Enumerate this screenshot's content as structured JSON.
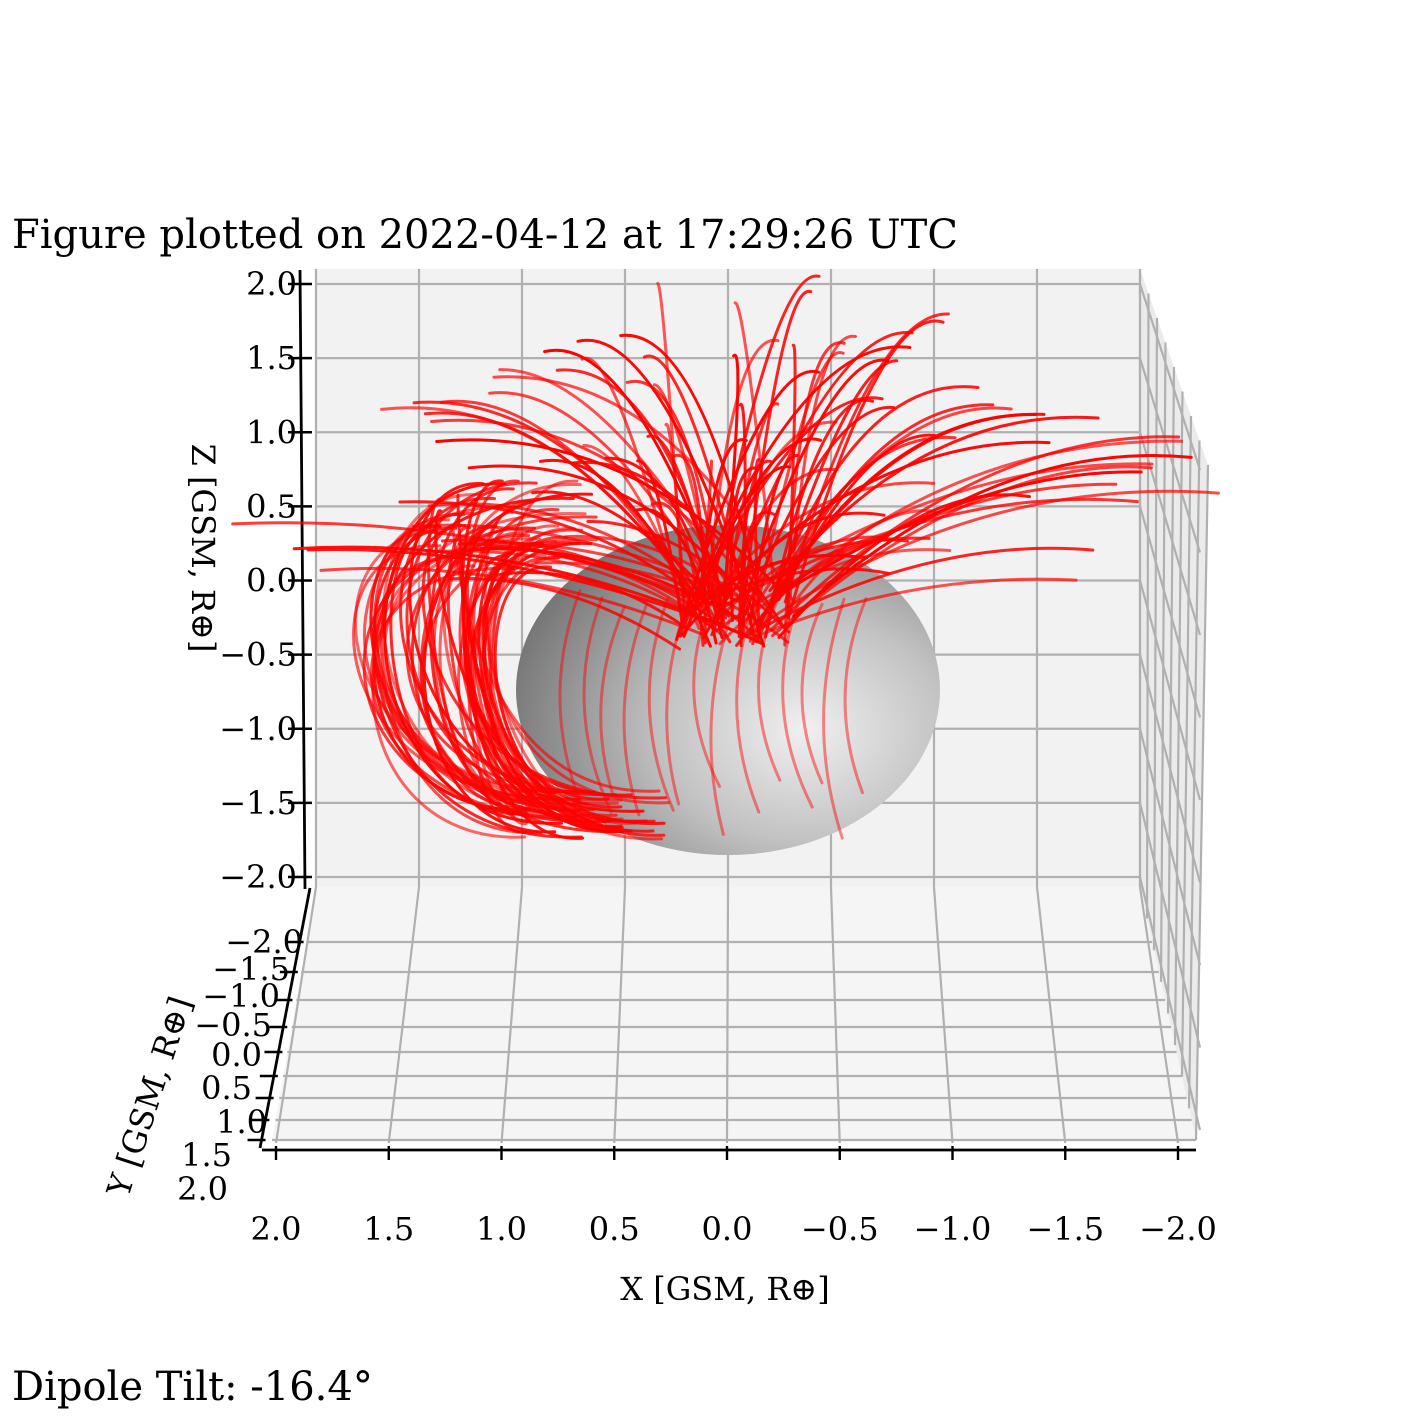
{
  "figure": {
    "title": "Figure plotted on 2022-04-12 at 17:29:26 UTC",
    "footer": "Dipole Tilt: -16.4°"
  },
  "chart_data": {
    "type": "line",
    "projection": "3d",
    "title": "Figure plotted on 2022-04-12 at 17:29:26 UTC",
    "xlabel": "X [GSM, R⊕]",
    "ylabel": "Y [GSM, R⊕]",
    "zlabel": "Z [GSM, R⊕]",
    "xlim": [
      2.0,
      -2.0
    ],
    "ylim": [
      -2.0,
      2.0
    ],
    "zlim": [
      -2.0,
      2.0
    ],
    "x_ticks": [
      "2.0",
      "1.5",
      "1.0",
      "0.5",
      "0.0",
      "−0.5",
      "−1.0",
      "−1.5",
      "−2.0"
    ],
    "y_ticks": [
      "−2.0",
      "−1.5",
      "−1.0",
      "−0.5",
      "0.0",
      "0.5",
      "1.0",
      "1.5",
      "2.0"
    ],
    "z_ticks": [
      "2.0",
      "1.5",
      "1.0",
      "0.5",
      "0.0",
      "−0.5",
      "−1.0",
      "−1.5",
      "−2.0"
    ],
    "grid": true,
    "sphere": {
      "radius": 1.0,
      "color": "#9a9a9a"
    },
    "series": [
      {
        "color": "#ff0000",
        "dipole_tilt_deg": -16.4,
        "line_count": 170
      }
    ]
  }
}
